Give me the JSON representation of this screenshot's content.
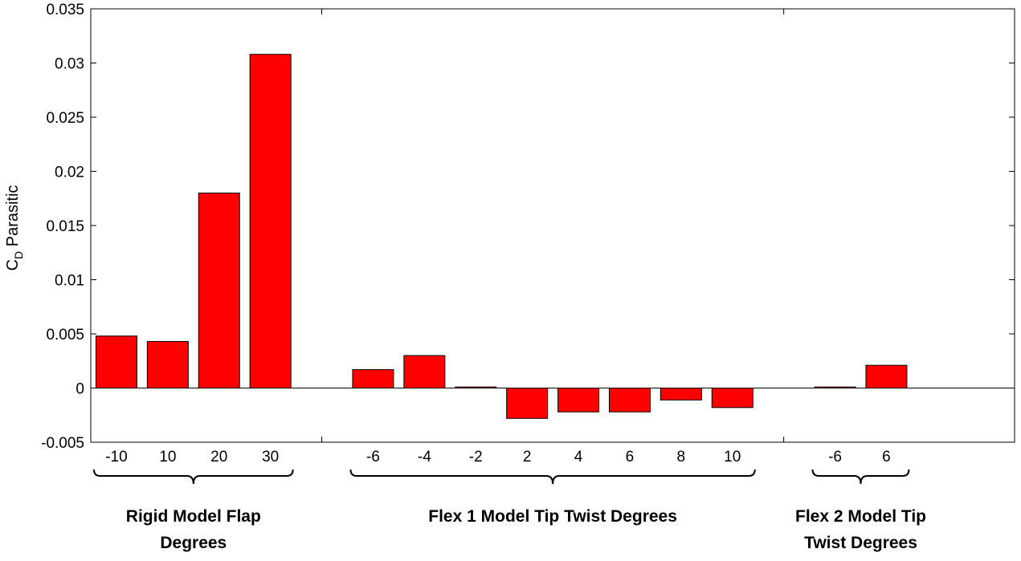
{
  "chart_data": {
    "type": "bar",
    "ylabel_main": "C",
    "ylabel_sub": "D",
    "ylabel_rest": " Parasitic",
    "ylim": [
      -0.005,
      0.035
    ],
    "yticks": [
      -0.005,
      0,
      0.005,
      0.01,
      0.015,
      0.02,
      0.025,
      0.03,
      0.035
    ],
    "ytick_labels": [
      "-0.005",
      "0",
      "0.005",
      "0.01",
      "0.015",
      "0.02",
      "0.025",
      "0.03",
      "0.035"
    ],
    "grid": false,
    "bar_color": "#ff0000",
    "groups": [
      {
        "label_lines": [
          "Rigid Model Flap",
          "Degrees"
        ],
        "categories": [
          "-10",
          "10",
          "20",
          "30"
        ],
        "values": [
          0.0048,
          0.0043,
          0.018,
          0.0308
        ]
      },
      {
        "label_lines": [
          "Flex 1 Model Tip Twist Degrees"
        ],
        "categories": [
          "-6",
          "-4",
          "-2",
          "2",
          "4",
          "6",
          "8",
          "10"
        ],
        "values": [
          0.0017,
          0.003,
          0.0001,
          -0.0028,
          -0.0022,
          -0.0022,
          -0.0011,
          -0.0018
        ]
      },
      {
        "label_lines": [
          "Flex 2 Model Tip",
          "Twist Degrees"
        ],
        "categories": [
          "-6",
          "6"
        ],
        "values": [
          0.0001,
          0.0021
        ]
      }
    ]
  }
}
